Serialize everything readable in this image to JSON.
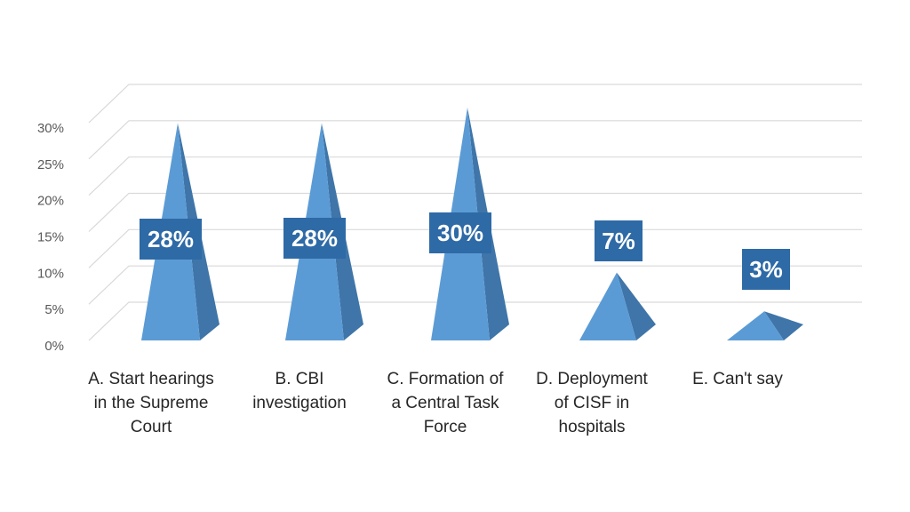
{
  "chart_data": {
    "type": "bar",
    "shape": "pyramid-3d",
    "categories": [
      [
        "A. Start hearings",
        "in the Supreme",
        "Court"
      ],
      [
        "B. CBI",
        "investigation"
      ],
      [
        "C. Formation of",
        "a Central Task",
        "Force"
      ],
      [
        "D. Deployment",
        "of CISF in",
        "hospitals"
      ],
      [
        "E. Can't say"
      ]
    ],
    "values": [
      28,
      28,
      30,
      7,
      3
    ],
    "data_labels": [
      "28%",
      "28%",
      "30%",
      "7%",
      "3%"
    ],
    "yticks": [
      "0%",
      "5%",
      "10%",
      "15%",
      "20%",
      "25%",
      "30%"
    ],
    "ylim": [
      0,
      30
    ],
    "grid": true,
    "legend": "none",
    "colors": {
      "front": "#5b9bd5",
      "side": "#3f75a8",
      "label_bg": "#2e6aa6",
      "grid": "#d9d9d9",
      "axis_text": "#595959",
      "category_text": "#262626"
    }
  }
}
